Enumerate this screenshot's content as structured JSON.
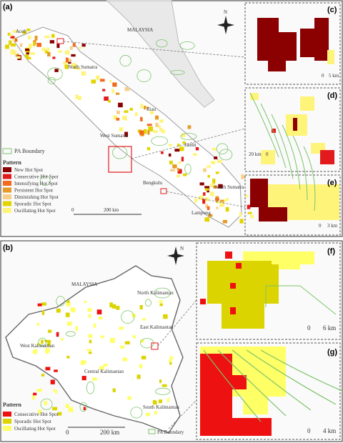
{
  "panel_a": {
    "label": "(a)",
    "north": "N",
    "places": [
      "Aceh",
      "MALAYSIA",
      "North Sumatra",
      "Riau",
      "West Sumatra",
      "Jambi",
      "Bengkulu",
      "South Sumatra",
      "Lampung"
    ],
    "legend": {
      "pa_boundary": "PA Boundary",
      "pa_color": "#7cc46a",
      "title": "Pattern",
      "items": [
        {
          "name": "New Hot Spot",
          "color": "#8b0000"
        },
        {
          "name": "Consecutive Hot Spot",
          "color": "#e31a1c"
        },
        {
          "name": "Intensifying Hot Spot",
          "color": "#f26b1d"
        },
        {
          "name": "Persistent Hot Spot",
          "color": "#e69a28"
        },
        {
          "name": "Diminishing Hot Spot",
          "color": "#f7cf8a"
        },
        {
          "name": "Sporadic Hot Spot",
          "color": "#e3d400"
        },
        {
          "name": "Oscillating Hot Spot",
          "color": "#fff47a"
        }
      ]
    },
    "scale": [
      "0",
      "200 km"
    ],
    "insets": [
      {
        "label": "(c)",
        "scale": [
          "0",
          "5 km"
        ]
      },
      {
        "label": "(d)",
        "scale": [
          "20 km",
          "0"
        ]
      },
      {
        "label": "(e)",
        "scale": [
          "0",
          "3 km"
        ]
      }
    ]
  },
  "panel_b": {
    "label": "(b)",
    "north": "N",
    "places": [
      "MALAYSIA",
      "North Kalimantan",
      "East Kalimantan",
      "West Kalimantan",
      "Central Kalimantan",
      "South Kalimantan"
    ],
    "legend": {
      "title": "Pattern",
      "pa_boundary": "PA Boundary",
      "pa_color": "#7cc46a",
      "items": [
        {
          "name": "Consecutive Hot Spot",
          "color": "#ee1111"
        },
        {
          "name": "Sporadic Hot Spot",
          "color": "#dcd400"
        },
        {
          "name": "Oscillating Hot Spot",
          "color": "#ffff66"
        }
      ]
    },
    "scale": [
      "0",
      "200 km"
    ],
    "insets": [
      {
        "label": "(f)",
        "scale": [
          "0",
          "6 km"
        ]
      },
      {
        "label": "(g)",
        "scale": [
          "0",
          "4 km"
        ]
      }
    ]
  }
}
